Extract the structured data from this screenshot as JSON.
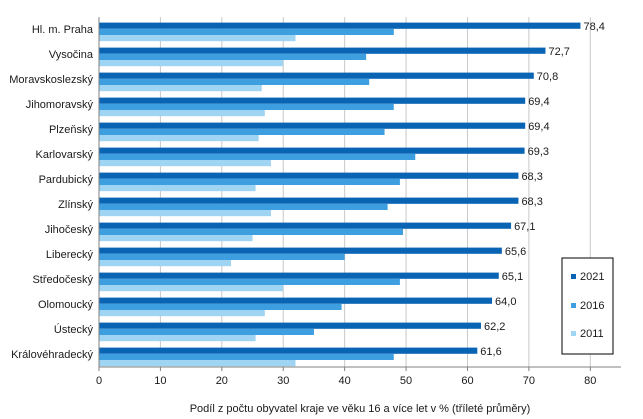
{
  "chart_data": {
    "type": "bar",
    "orientation": "horizontal",
    "categories": [
      "Hl. m. Praha",
      "Vysočina",
      "Moravskoslezský",
      "Jihomoravský",
      "Plzeňský",
      "Karlovarský",
      "Pardubický",
      "Zlínský",
      "Jihočeský",
      "Liberecký",
      "Středočeský",
      "Olomoucký",
      "Ústecký",
      "Královéhradecký"
    ],
    "series": [
      {
        "name": "2021",
        "color": "#0a64b4",
        "values": [
          78.4,
          72.7,
          70.8,
          69.4,
          69.4,
          69.3,
          68.3,
          68.3,
          67.1,
          65.6,
          65.1,
          64.0,
          62.2,
          61.6
        ]
      },
      {
        "name": "2016",
        "color": "#3d9ee0",
        "values": [
          48.0,
          43.5,
          44.0,
          48.0,
          46.5,
          51.5,
          49.0,
          47.0,
          49.5,
          40.0,
          49.0,
          39.5,
          35.0,
          48.0
        ]
      },
      {
        "name": "2011",
        "color": "#9fd4f2",
        "values": [
          32.0,
          30.0,
          26.5,
          27.0,
          26.0,
          28.0,
          25.5,
          28.0,
          25.0,
          21.5,
          30.0,
          27.0,
          25.5,
          32.0
        ]
      }
    ],
    "data_labels": [
      "78,4",
      "72,7",
      "70,8",
      "69,4",
      "69,4",
      "69,3",
      "68,3",
      "68,3",
      "67,1",
      "65,6",
      "65,1",
      "64,0",
      "62,2",
      "61,6"
    ],
    "xlim": [
      0,
      85
    ],
    "xticks": [
      0,
      10,
      20,
      30,
      40,
      50,
      60,
      70,
      80
    ],
    "xtick_labels": [
      "0",
      "10",
      "20",
      "30",
      "40",
      "50",
      "60",
      "70",
      "80"
    ],
    "xlabel": "Podíl  z počtu obyvatel kraje ve věku 16 a více let v % (tříleté průměry)",
    "ylabel": "",
    "grid": true,
    "legend": {
      "placement": "right",
      "entries": [
        "2021",
        "2016",
        "2011"
      ]
    }
  }
}
